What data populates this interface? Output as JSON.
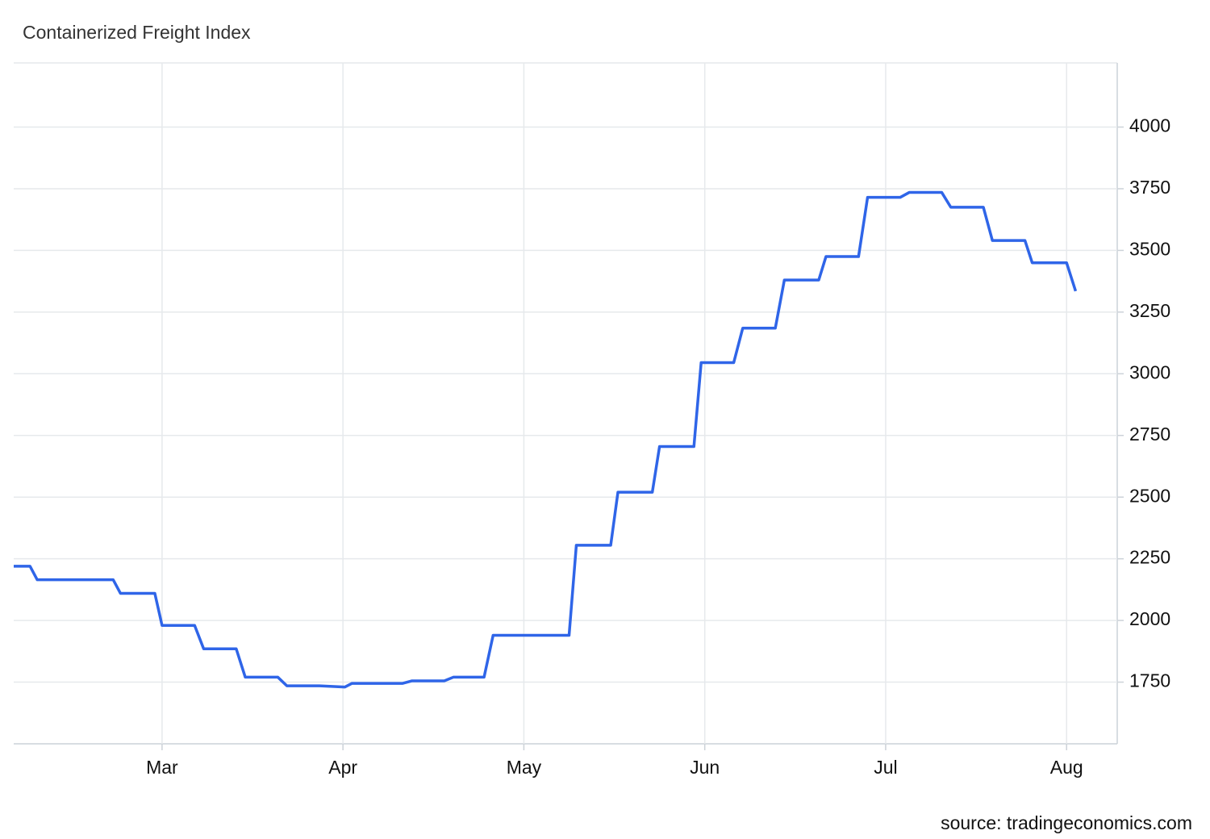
{
  "chart_data": {
    "type": "line",
    "title": "Containerized Freight Index",
    "source": "source: tradingeconomics.com",
    "x": [
      2.18,
      2.27,
      2.31,
      2.73,
      2.77,
      2.96,
      3.0,
      3.18,
      3.23,
      3.41,
      3.46,
      3.64,
      3.69,
      3.87,
      4.01,
      4.05,
      4.33,
      4.38,
      4.56,
      4.61,
      4.78,
      4.83,
      5.25,
      5.29,
      5.48,
      5.52,
      5.71,
      5.75,
      5.94,
      5.98,
      6.16,
      6.21,
      6.39,
      6.44,
      6.63,
      6.67,
      6.85,
      6.9,
      7.08,
      7.13,
      7.31,
      7.36,
      7.54,
      7.59,
      7.77,
      7.81,
      8.0,
      8.05
    ],
    "series": [
      {
        "name": "Containerized Freight Index",
        "color": "#2f65e8",
        "values": [
          2220,
          2220,
          2165,
          2165,
          2110,
          2110,
          1980,
          1980,
          1885,
          1885,
          1770,
          1770,
          1735,
          1735,
          1730,
          1745,
          1745,
          1755,
          1755,
          1770,
          1770,
          1940,
          1940,
          2305,
          2305,
          2520,
          2520,
          2705,
          2705,
          3045,
          3045,
          3185,
          3185,
          3380,
          3380,
          3475,
          3475,
          3715,
          3715,
          3735,
          3735,
          3675,
          3675,
          3540,
          3540,
          3450,
          3450,
          3335
        ]
      }
    ],
    "xlim": [
      2.18,
      8.28
    ],
    "xticks": [
      {
        "value": 3,
        "label": "Mar"
      },
      {
        "value": 4,
        "label": "Apr"
      },
      {
        "value": 5,
        "label": "May"
      },
      {
        "value": 6,
        "label": "Jun"
      },
      {
        "value": 7,
        "label": "Jul"
      },
      {
        "value": 8,
        "label": "Aug"
      }
    ],
    "ylim": [
      1500,
      4260
    ],
    "yticks": [
      1750,
      2000,
      2250,
      2500,
      2750,
      3000,
      3250,
      3500,
      3750,
      4000
    ],
    "grid": true
  }
}
